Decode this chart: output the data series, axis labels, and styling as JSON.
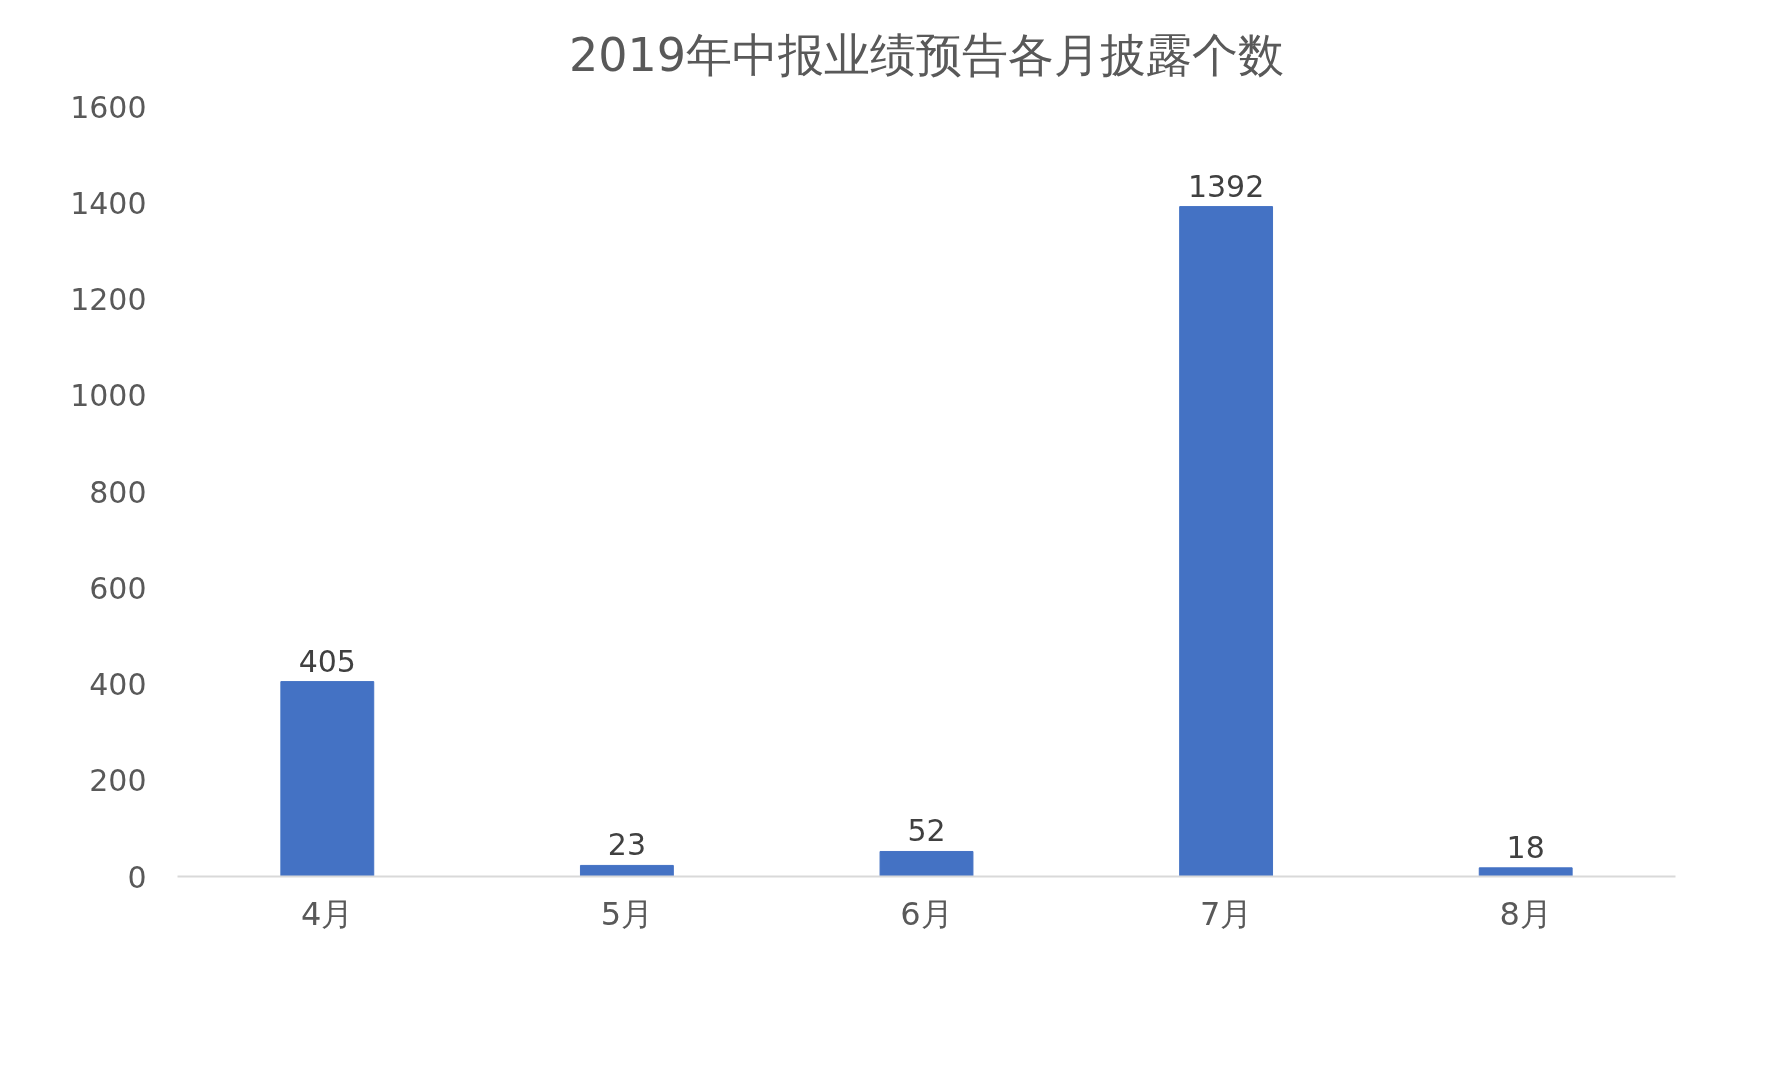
{
  "chart_data": {
    "type": "bar",
    "title": "2019年中报业绩预告各月披露个数",
    "categories": [
      "4月",
      "5月",
      "6月",
      "7月",
      "8月"
    ],
    "values": [
      405,
      23,
      52,
      1392,
      18
    ],
    "color": "#4472c4",
    "ylim": [
      0,
      1600
    ],
    "yticks": [
      0,
      200,
      400,
      600,
      800,
      1000,
      1200,
      1400,
      1600
    ],
    "grid": false,
    "data_labels": true
  }
}
